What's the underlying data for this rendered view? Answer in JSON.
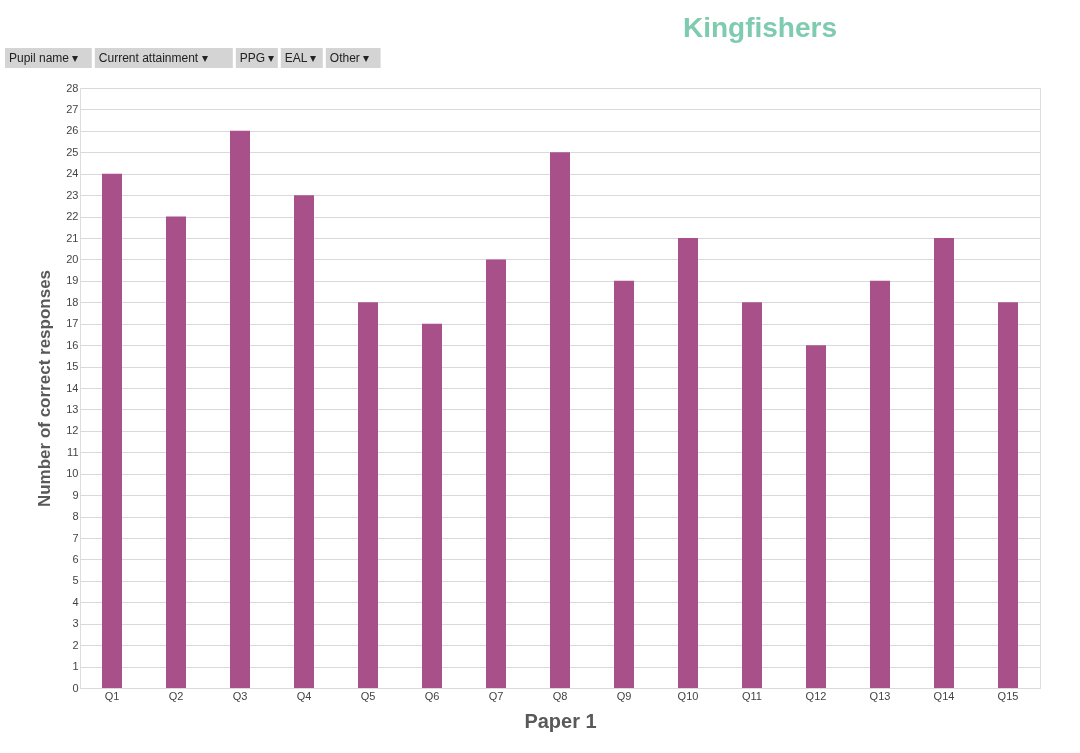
{
  "chart_data": {
    "type": "bar",
    "title": "Kingfishers",
    "xlabel": "Paper 1",
    "ylabel": "Number of correct responses",
    "categories": [
      "Q1",
      "Q2",
      "Q3",
      "Q4",
      "Q5",
      "Q6",
      "Q7",
      "Q8",
      "Q9",
      "Q10",
      "Q11",
      "Q12",
      "Q13",
      "Q14",
      "Q15"
    ],
    "values": [
      24,
      22,
      26,
      23,
      18,
      17,
      20,
      25,
      19,
      21,
      18,
      16,
      19,
      21,
      18
    ],
    "color": "#a8508a",
    "ylim": [
      0,
      28
    ],
    "yticks": [
      0,
      1,
      2,
      3,
      4,
      5,
      6,
      7,
      8,
      9,
      10,
      11,
      12,
      13,
      14,
      15,
      16,
      17,
      18,
      19,
      20,
      21,
      22,
      23,
      24,
      25,
      26,
      27,
      28
    ],
    "grid": "y",
    "annotations": [
      "Pupil name ▾",
      "Current attainment ▾",
      "PPG ▾",
      "EAL ▾",
      "Other ▾"
    ]
  }
}
